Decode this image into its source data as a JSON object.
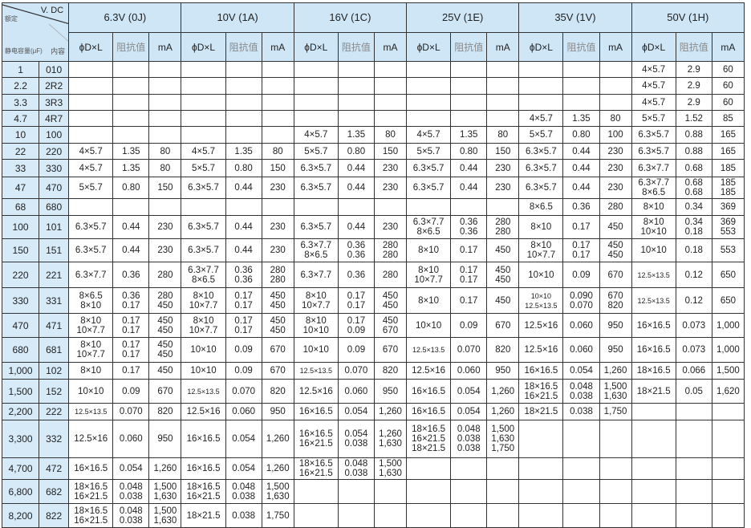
{
  "header": {
    "voltage_label": "V. DC",
    "rated_label": "额定",
    "capacitance_label": "静电容量(μF)",
    "code_label": "内容",
    "groups": [
      "6.3V (0J)",
      "10V (1A)",
      "16V (1C)",
      "25V (1E)",
      "35V (1V)",
      "50V (1H)"
    ],
    "sub_columns": [
      "ϕD×L",
      "阻抗值",
      "mA"
    ]
  },
  "colors": {
    "header_bg": "#cfe6f7",
    "left_col_bg": "#d6eaf8",
    "border": "#333333"
  },
  "rows": [
    {
      "cap": "1",
      "code": "010",
      "cells": [
        "",
        "",
        "",
        "",
        "",
        "",
        "",
        "",
        "",
        "",
        "",
        "",
        "",
        "",
        "",
        "4×5.7",
        "2.9",
        "60"
      ]
    },
    {
      "cap": "2.2",
      "code": "2R2",
      "cells": [
        "",
        "",
        "",
        "",
        "",
        "",
        "",
        "",
        "",
        "",
        "",
        "",
        "",
        "",
        "",
        "4×5.7",
        "2.9",
        "60"
      ]
    },
    {
      "cap": "3.3",
      "code": "3R3",
      "cells": [
        "",
        "",
        "",
        "",
        "",
        "",
        "",
        "",
        "",
        "",
        "",
        "",
        "",
        "",
        "",
        "4×5.7",
        "2.9",
        "60"
      ]
    },
    {
      "cap": "4.7",
      "code": "4R7",
      "cells": [
        "",
        "",
        "",
        "",
        "",
        "",
        "",
        "",
        "",
        "",
        "",
        "",
        "4×5.7",
        "1.35",
        "80",
        "5×5.7",
        "1.52",
        "85"
      ]
    },
    {
      "cap": "10",
      "code": "100",
      "cells": [
        "",
        "",
        "",
        "",
        "",
        "",
        "4×5.7",
        "1.35",
        "80",
        "4×5.7",
        "1.35",
        "80",
        "5×5.7",
        "0.80",
        "100",
        "6.3×5.7",
        "0.88",
        "165"
      ]
    },
    {
      "cap": "22",
      "code": "220",
      "cells": [
        "4×5.7",
        "1.35",
        "80",
        "4×5.7",
        "1.35",
        "80",
        "5×5.7",
        "0.80",
        "150",
        "5×5.7",
        "0.80",
        "150",
        "6.3×5.7",
        "0.44",
        "230",
        "6.3×5.7",
        "0.88",
        "165"
      ]
    },
    {
      "cap": "33",
      "code": "330",
      "cells": [
        "4×5.7",
        "1.35",
        "80",
        "5×5.7",
        "0.80",
        "150",
        "6.3×5.7",
        "0.44",
        "230",
        "6.3×5.7",
        "0.44",
        "230",
        "6.3×5.7",
        "0.44",
        "230",
        "6.3×7.7",
        "0.68",
        "185"
      ]
    },
    {
      "cap": "47",
      "code": "470",
      "cells": [
        "5×5.7",
        "0.80",
        "150",
        "6.3×5.7",
        "0.44",
        "230",
        "6.3×5.7",
        "0.44",
        "230",
        "6.3×5.7",
        "0.44",
        "230",
        "6.3×5.7",
        "0.44",
        "230",
        "6.3×7.7\n8×6.5",
        "0.68\n0.68",
        "185\n185"
      ]
    },
    {
      "cap": "68",
      "code": "680",
      "cells": [
        "",
        "",
        "",
        "",
        "",
        "",
        "",
        "",
        "",
        "",
        "",
        "",
        "8×6.5",
        "0.36",
        "280",
        "8×10",
        "0.34",
        "369"
      ]
    },
    {
      "cap": "100",
      "code": "101",
      "cells": [
        "6.3×5.7",
        "0.44",
        "230",
        "6.3×5.7",
        "0.44",
        "230",
        "6.3×5.7",
        "0.44",
        "230",
        "6.3×7.7\n8×6.5",
        "0.36\n0.36",
        "280\n280",
        "8×10",
        "0.17",
        "450",
        "8×10\n10×10",
        "0.34\n0.18",
        "369\n553"
      ]
    },
    {
      "cap": "150",
      "code": "151",
      "cells": [
        "6.3×5.7",
        "0.44",
        "230",
        "6.3×5.7",
        "0.44",
        "230",
        "6.3×7.7\n8×6.5",
        "0.36\n0.36",
        "280\n280",
        "8×10",
        "0.17",
        "450",
        "8×10\n10×7.7",
        "0.17\n0.17",
        "450\n450",
        "10×10",
        "0.18",
        "553"
      ]
    },
    {
      "cap": "220",
      "code": "221",
      "cells": [
        "6.3×7.7",
        "0.36",
        "280",
        "6.3×7.7\n8×6.5",
        "0.36\n0.36",
        "280\n280",
        "6.3×7.7",
        "0.36",
        "280",
        "8×10\n10×7.7",
        "0.17\n0.17",
        "450\n450",
        "10×10",
        "0.09",
        "670",
        "12.5×13.5",
        "0.12",
        "650"
      ]
    },
    {
      "cap": "330",
      "code": "331",
      "cells": [
        "8×6.5\n8×10",
        "0.36\n0.17",
        "280\n450",
        "8×10\n10×7.7",
        "0.17\n0.17",
        "450\n450",
        "8×10\n10×7.7",
        "0.17\n0.17",
        "450\n450",
        "8×10",
        "0.17",
        "450",
        "10×10\n12.5×13.5",
        "0.090\n0.070",
        "670\n820",
        "12.5×13.5",
        "0.12",
        "650"
      ]
    },
    {
      "cap": "470",
      "code": "471",
      "cells": [
        "8×10\n10×7.7",
        "0.17\n0.17",
        "450\n450",
        "8×10\n10×7.7",
        "0.17\n0.17",
        "450\n450",
        "8×10\n10×10",
        "0.17\n0.09",
        "450\n670",
        "10×10",
        "0.09",
        "670",
        "12.5×16",
        "0.060",
        "950",
        "16×16.5",
        "0.073",
        "1,000"
      ]
    },
    {
      "cap": "680",
      "code": "681",
      "cells": [
        "8×10\n10×7.7",
        "0.17\n0.17",
        "450\n450",
        "10×10",
        "0.09",
        "670",
        "10×10",
        "0.09",
        "670",
        "12.5×13.5",
        "0.070",
        "820",
        "12.5×16",
        "0.060",
        "950",
        "16×16.5",
        "0.073",
        "1,000"
      ]
    },
    {
      "cap": "1,000",
      "code": "102",
      "cells": [
        "8×10",
        "0.17",
        "450",
        "10×10",
        "0.09",
        "670",
        "12.5×13.5",
        "0.070",
        "820",
        "12.5×16",
        "0.060",
        "950",
        "16×16.5",
        "0.054",
        "1,260",
        "18×16.5",
        "0.066",
        "1,500"
      ]
    },
    {
      "cap": "1,500",
      "code": "152",
      "cells": [
        "10×10",
        "0.09",
        "670",
        "12.5×13.5",
        "0.070",
        "820",
        "12.5×16",
        "0.060",
        "950",
        "16×16.5",
        "0.054",
        "1,260",
        "18×16.5\n16×21.5",
        "0.048\n0.038",
        "1,500\n1,630",
        "18×21.5",
        "0.05",
        "1,620"
      ]
    },
    {
      "cap": "2,200",
      "code": "222",
      "cells": [
        "12.5×13.5",
        "0.070",
        "820",
        "12.5×16",
        "0.060",
        "950",
        "16×16.5",
        "0.054",
        "1,260",
        "16×16.5",
        "0.054",
        "1,260",
        "18×21.5",
        "0.038",
        "1,750",
        "",
        "",
        ""
      ]
    },
    {
      "cap": "3,300",
      "code": "332",
      "cells": [
        "12.5×16",
        "0.060",
        "950",
        "16×16.5",
        "0.054",
        "1,260",
        "16×16.5\n16×21.5",
        "0.054\n0.038",
        "1,260\n1,630",
        "18×16.5\n16×21.5\n18×21.5",
        "0.048\n0.038\n0.038",
        "1,500\n1,630\n1,750",
        "",
        "",
        "",
        "",
        "",
        ""
      ]
    },
    {
      "cap": "4,700",
      "code": "472",
      "cells": [
        "16×16.5",
        "0.054",
        "1,260",
        "16×16.5",
        "0.054",
        "1,260",
        "18×16.5\n16×21.5",
        "0.048\n0.038",
        "1,500\n1,630",
        "",
        "",
        "",
        "",
        "",
        "",
        "",
        "",
        ""
      ]
    },
    {
      "cap": "6,800",
      "code": "682",
      "cells": [
        "18×16.5\n16×21.5",
        "0.048\n0.038",
        "1,500\n1,630",
        "18×16.5\n16×21.5",
        "0.048\n0.038",
        "1,500\n1,630",
        "",
        "",
        "",
        "",
        "",
        "",
        "",
        "",
        "",
        "",
        "",
        ""
      ]
    },
    {
      "cap": "8,200",
      "code": "822",
      "cells": [
        "18×16.5\n16×21.5",
        "0.048\n0.038",
        "1,500\n1,630",
        "18×21.5",
        "0.038",
        "1,750",
        "",
        "",
        "",
        "",
        "",
        "",
        "",
        "",
        "",
        "",
        "",
        ""
      ]
    }
  ]
}
